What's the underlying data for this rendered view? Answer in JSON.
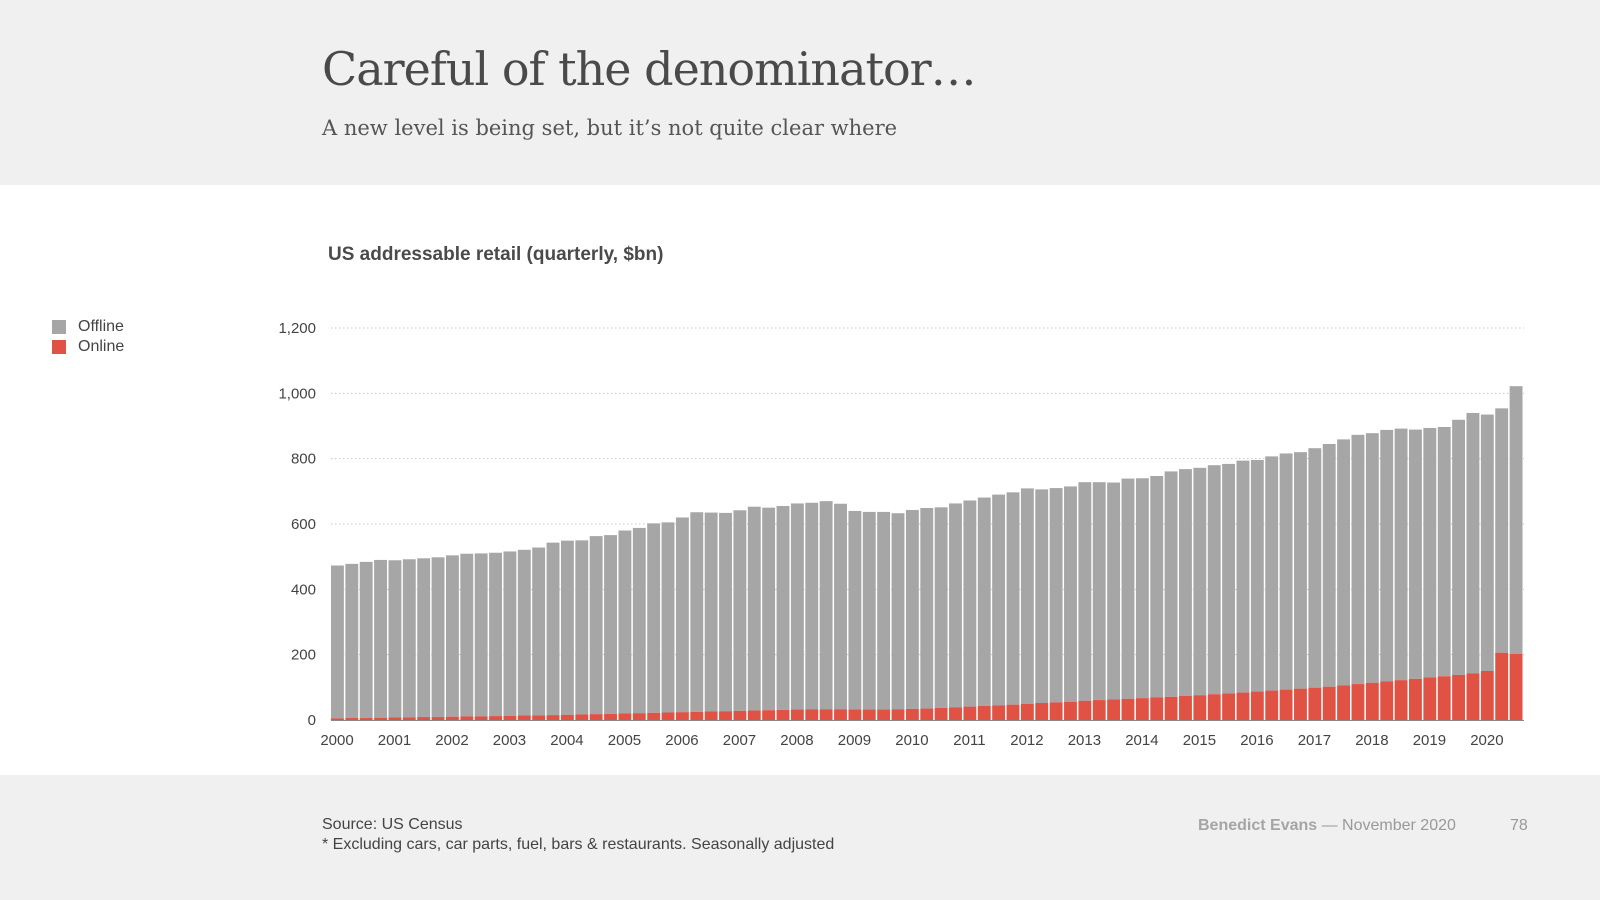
{
  "header": {
    "title": "Careful of the denominator…",
    "subtitle": "A new level is being set, but it’s not quite clear where"
  },
  "footer": {
    "source": "Source: US Census",
    "note": "* Excluding cars, car parts, fuel, bars & restaurants. Seasonally adjusted",
    "author": "Benedict Evans",
    "date": "— November 2020",
    "page_number": "78"
  },
  "colors": {
    "offline": "#a6a6a6",
    "online": "#e05244",
    "background": "#f0f0f0",
    "panel": "#ffffff"
  },
  "chart_data": {
    "type": "bar",
    "stacked": true,
    "title": "US addressable retail (quarterly, $bn)",
    "xlabel": "",
    "ylabel": "",
    "ylim": [
      0,
      1200
    ],
    "yticks": [
      "0",
      "200",
      "400",
      "600",
      "800",
      "1,000",
      "1,200"
    ],
    "ytick_values": [
      0,
      200,
      400,
      600,
      800,
      1000,
      1200
    ],
    "grid": true,
    "legend_position": "top-left",
    "x_tick_labels": [
      "2000",
      "2001",
      "2002",
      "2003",
      "2004",
      "2005",
      "2006",
      "2007",
      "2008",
      "2009",
      "2010",
      "2011",
      "2012",
      "2013",
      "2014",
      "2015",
      "2016",
      "2017",
      "2018",
      "2019",
      "2020"
    ],
    "categories": [
      "2000 Q1",
      "2000 Q2",
      "2000 Q3",
      "2000 Q4",
      "2001 Q1",
      "2001 Q2",
      "2001 Q3",
      "2001 Q4",
      "2002 Q1",
      "2002 Q2",
      "2002 Q3",
      "2002 Q4",
      "2003 Q1",
      "2003 Q2",
      "2003 Q3",
      "2003 Q4",
      "2004 Q1",
      "2004 Q2",
      "2004 Q3",
      "2004 Q4",
      "2005 Q1",
      "2005 Q2",
      "2005 Q3",
      "2005 Q4",
      "2006 Q1",
      "2006 Q2",
      "2006 Q3",
      "2006 Q4",
      "2007 Q1",
      "2007 Q2",
      "2007 Q3",
      "2007 Q4",
      "2008 Q1",
      "2008 Q2",
      "2008 Q3",
      "2008 Q4",
      "2009 Q1",
      "2009 Q2",
      "2009 Q3",
      "2009 Q4",
      "2010 Q1",
      "2010 Q2",
      "2010 Q3",
      "2010 Q4",
      "2011 Q1",
      "2011 Q2",
      "2011 Q3",
      "2011 Q4",
      "2012 Q1",
      "2012 Q2",
      "2012 Q3",
      "2012 Q4",
      "2013 Q1",
      "2013 Q2",
      "2013 Q3",
      "2013 Q4",
      "2014 Q1",
      "2014 Q2",
      "2014 Q3",
      "2014 Q4",
      "2015 Q1",
      "2015 Q2",
      "2015 Q3",
      "2015 Q4",
      "2016 Q1",
      "2016 Q2",
      "2016 Q3",
      "2016 Q4",
      "2017 Q1",
      "2017 Q2",
      "2017 Q3",
      "2017 Q4",
      "2018 Q1",
      "2018 Q2",
      "2018 Q3",
      "2018 Q4",
      "2019 Q1",
      "2019 Q2",
      "2019 Q3",
      "2019 Q4",
      "2020 Q1",
      "2020 Q2",
      "2020 Q3"
    ],
    "series": [
      {
        "name": "Online",
        "color": "#e05244",
        "values": [
          5,
          6,
          6,
          7,
          8,
          8,
          9,
          9,
          10,
          11,
          11,
          12,
          13,
          14,
          14,
          15,
          16,
          17,
          18,
          19,
          20,
          21,
          22,
          23,
          24,
          25,
          26,
          27,
          28,
          29,
          30,
          31,
          32,
          33,
          33,
          33,
          32,
          32,
          32,
          33,
          34,
          35,
          37,
          39,
          41,
          43,
          45,
          47,
          49,
          52,
          54,
          56,
          59,
          61,
          63,
          65,
          67,
          69,
          71,
          74,
          76,
          79,
          81,
          84,
          87,
          90,
          93,
          96,
          99,
          102,
          106,
          110,
          114,
          118,
          122,
          126,
          130,
          134,
          138,
          143,
          150,
          206,
          202
        ]
      },
      {
        "name": "Offline",
        "color": "#a6a6a6",
        "values": [
          468,
          472,
          478,
          483,
          481,
          484,
          486,
          489,
          494,
          498,
          499,
          500,
          503,
          507,
          514,
          528,
          533,
          533,
          545,
          547,
          560,
          567,
          580,
          582,
          596,
          611,
          609,
          607,
          614,
          624,
          620,
          624,
          631,
          632,
          637,
          629,
          608,
          605,
          605,
          600,
          609,
          614,
          614,
          624,
          631,
          638,
          645,
          650,
          660,
          654,
          656,
          659,
          669,
          667,
          664,
          674,
          673,
          678,
          690,
          694,
          696,
          701,
          703,
          710,
          709,
          717,
          723,
          724,
          733,
          743,
          753,
          763,
          764,
          770,
          770,
          763,
          764,
          763,
          781,
          797,
          785,
          748,
          820
        ]
      }
    ]
  }
}
